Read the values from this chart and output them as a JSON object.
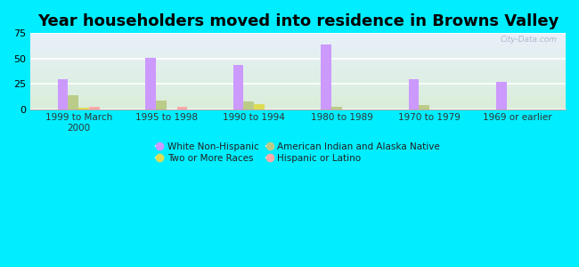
{
  "title": "Year householders moved into residence in Browns Valley",
  "categories": [
    "1999 to March\n2000",
    "1995 to 1998",
    "1990 to 1994",
    "1980 to 1989",
    "1970 to 1979",
    "1969 or earlier"
  ],
  "series": {
    "White Non-Hispanic": [
      30,
      51,
      44,
      64,
      30,
      27
    ],
    "American Indian and Alaska Native": [
      14,
      9,
      8,
      3,
      4,
      0
    ],
    "Two or More Races": [
      2,
      0,
      5,
      0,
      0,
      0
    ],
    "Hispanic or Latino": [
      3,
      3,
      0,
      0,
      0,
      0
    ]
  },
  "colors": {
    "White Non-Hispanic": "#cc99ff",
    "American Indian and Alaska Native": "#bbcc88",
    "Two or More Races": "#dddd55",
    "Hispanic or Latino": "#ffaaaa"
  },
  "ylim": [
    0,
    75
  ],
  "yticks": [
    0,
    25,
    50,
    75
  ],
  "bar_width": 0.12,
  "bg_outer": "#00eeff",
  "watermark": "City-Data.com",
  "title_fontsize": 13,
  "legend_order": [
    "White Non-Hispanic",
    "Two or More Races",
    "American Indian and Alaska Native",
    "Hispanic or Latino"
  ]
}
